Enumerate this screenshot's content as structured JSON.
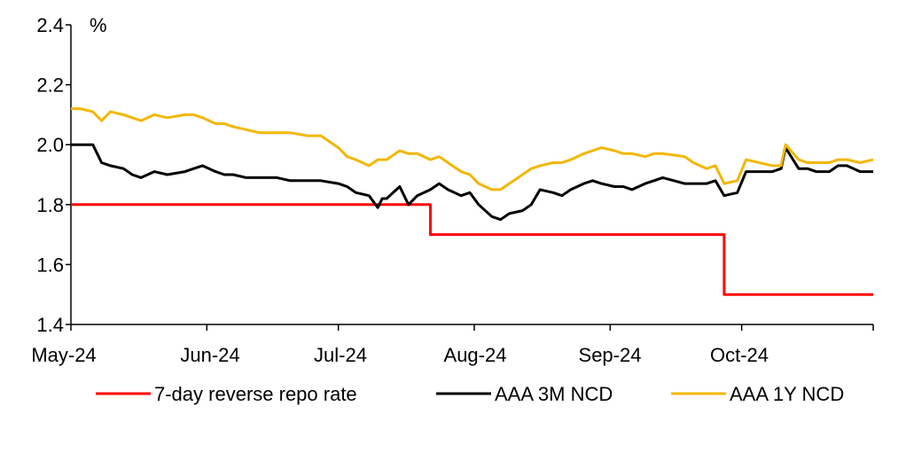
{
  "chart_data": {
    "type": "line",
    "unit_label": "%",
    "ylim": [
      1.4,
      2.4
    ],
    "y_ticks": [
      "1.4",
      "1.6",
      "1.8",
      "2.0",
      "2.2",
      "2.4"
    ],
    "x_ticks": [
      "May-24",
      "Jun-24",
      "Jul-24",
      "Aug-24",
      "Sep-24",
      "Oct-24"
    ],
    "xlim": [
      "2024-05-01",
      "2024-10-31"
    ],
    "grid": false,
    "legend_position": "bottom",
    "series": [
      {
        "name": "7-day reverse repo rate",
        "color": "#ff0000",
        "step": true,
        "x": [
          "2024-05-01",
          "2024-07-22",
          "2024-09-27",
          "2024-10-31"
        ],
        "y": [
          1.8,
          1.7,
          1.5,
          1.5
        ]
      },
      {
        "name": "AAA 3M NCD",
        "color": "#000000",
        "x": [
          "2024-05-01",
          "2024-05-03",
          "2024-05-06",
          "2024-05-08",
          "2024-05-10",
          "2024-05-13",
          "2024-05-15",
          "2024-05-17",
          "2024-05-20",
          "2024-05-23",
          "2024-05-27",
          "2024-05-29",
          "2024-05-31",
          "2024-06-03",
          "2024-06-05",
          "2024-06-07",
          "2024-06-10",
          "2024-06-13",
          "2024-06-17",
          "2024-06-20",
          "2024-06-24",
          "2024-06-27",
          "2024-07-01",
          "2024-07-03",
          "2024-07-05",
          "2024-07-08",
          "2024-07-10",
          "2024-07-11",
          "2024-07-12",
          "2024-07-15",
          "2024-07-17",
          "2024-07-19",
          "2024-07-22",
          "2024-07-24",
          "2024-07-26",
          "2024-07-29",
          "2024-07-31",
          "2024-08-02",
          "2024-08-05",
          "2024-08-07",
          "2024-08-09",
          "2024-08-12",
          "2024-08-14",
          "2024-08-16",
          "2024-08-19",
          "2024-08-21",
          "2024-08-23",
          "2024-08-26",
          "2024-08-28",
          "2024-08-30",
          "2024-09-02",
          "2024-09-04",
          "2024-09-06",
          "2024-09-09",
          "2024-09-11",
          "2024-09-13",
          "2024-09-18",
          "2024-09-20",
          "2024-09-23",
          "2024-09-25",
          "2024-09-27",
          "2024-09-30",
          "2024-10-02",
          "2024-10-08",
          "2024-10-10",
          "2024-10-11",
          "2024-10-14",
          "2024-10-16",
          "2024-10-18",
          "2024-10-21",
          "2024-10-23",
          "2024-10-25",
          "2024-10-28",
          "2024-10-31"
        ],
        "y": [
          2.0,
          2.0,
          2.0,
          1.94,
          1.93,
          1.92,
          1.9,
          1.89,
          1.91,
          1.9,
          1.91,
          1.92,
          1.93,
          1.91,
          1.9,
          1.9,
          1.89,
          1.89,
          1.89,
          1.88,
          1.88,
          1.88,
          1.87,
          1.86,
          1.84,
          1.83,
          1.79,
          1.82,
          1.82,
          1.86,
          1.8,
          1.83,
          1.85,
          1.87,
          1.85,
          1.83,
          1.84,
          1.8,
          1.76,
          1.75,
          1.77,
          1.78,
          1.8,
          1.85,
          1.84,
          1.83,
          1.85,
          1.87,
          1.88,
          1.87,
          1.86,
          1.86,
          1.85,
          1.87,
          1.88,
          1.89,
          1.87,
          1.87,
          1.87,
          1.88,
          1.83,
          1.84,
          1.91,
          1.91,
          1.92,
          1.99,
          1.92,
          1.92,
          1.91,
          1.91,
          1.93,
          1.93,
          1.91,
          1.91
        ]
      },
      {
        "name": "AAA 1Y NCD",
        "color": "#f2b705",
        "x": [
          "2024-05-01",
          "2024-05-03",
          "2024-05-06",
          "2024-05-08",
          "2024-05-10",
          "2024-05-13",
          "2024-05-15",
          "2024-05-17",
          "2024-05-20",
          "2024-05-23",
          "2024-05-27",
          "2024-05-29",
          "2024-05-31",
          "2024-06-03",
          "2024-06-05",
          "2024-06-07",
          "2024-06-10",
          "2024-06-13",
          "2024-06-17",
          "2024-06-20",
          "2024-06-24",
          "2024-06-27",
          "2024-07-01",
          "2024-07-03",
          "2024-07-05",
          "2024-07-08",
          "2024-07-10",
          "2024-07-12",
          "2024-07-15",
          "2024-07-17",
          "2024-07-19",
          "2024-07-22",
          "2024-07-24",
          "2024-07-26",
          "2024-07-29",
          "2024-07-31",
          "2024-08-02",
          "2024-08-05",
          "2024-08-07",
          "2024-08-09",
          "2024-08-12",
          "2024-08-14",
          "2024-08-16",
          "2024-08-19",
          "2024-08-21",
          "2024-08-23",
          "2024-08-26",
          "2024-08-28",
          "2024-08-30",
          "2024-09-02",
          "2024-09-04",
          "2024-09-06",
          "2024-09-09",
          "2024-09-11",
          "2024-09-13",
          "2024-09-18",
          "2024-09-20",
          "2024-09-23",
          "2024-09-25",
          "2024-09-27",
          "2024-09-30",
          "2024-10-02",
          "2024-10-08",
          "2024-10-10",
          "2024-10-11",
          "2024-10-14",
          "2024-10-16",
          "2024-10-18",
          "2024-10-21",
          "2024-10-23",
          "2024-10-25",
          "2024-10-28",
          "2024-10-31"
        ],
        "y": [
          2.12,
          2.12,
          2.11,
          2.08,
          2.11,
          2.1,
          2.09,
          2.08,
          2.1,
          2.09,
          2.1,
          2.1,
          2.09,
          2.07,
          2.07,
          2.06,
          2.05,
          2.04,
          2.04,
          2.04,
          2.03,
          2.03,
          1.99,
          1.96,
          1.95,
          1.93,
          1.95,
          1.95,
          1.98,
          1.97,
          1.97,
          1.95,
          1.96,
          1.94,
          1.91,
          1.9,
          1.87,
          1.85,
          1.85,
          1.87,
          1.9,
          1.92,
          1.93,
          1.94,
          1.94,
          1.95,
          1.97,
          1.98,
          1.99,
          1.98,
          1.97,
          1.97,
          1.96,
          1.97,
          1.97,
          1.96,
          1.94,
          1.92,
          1.93,
          1.87,
          1.88,
          1.95,
          1.93,
          1.93,
          2.0,
          1.95,
          1.94,
          1.94,
          1.94,
          1.95,
          1.95,
          1.94,
          1.95
        ]
      }
    ]
  }
}
